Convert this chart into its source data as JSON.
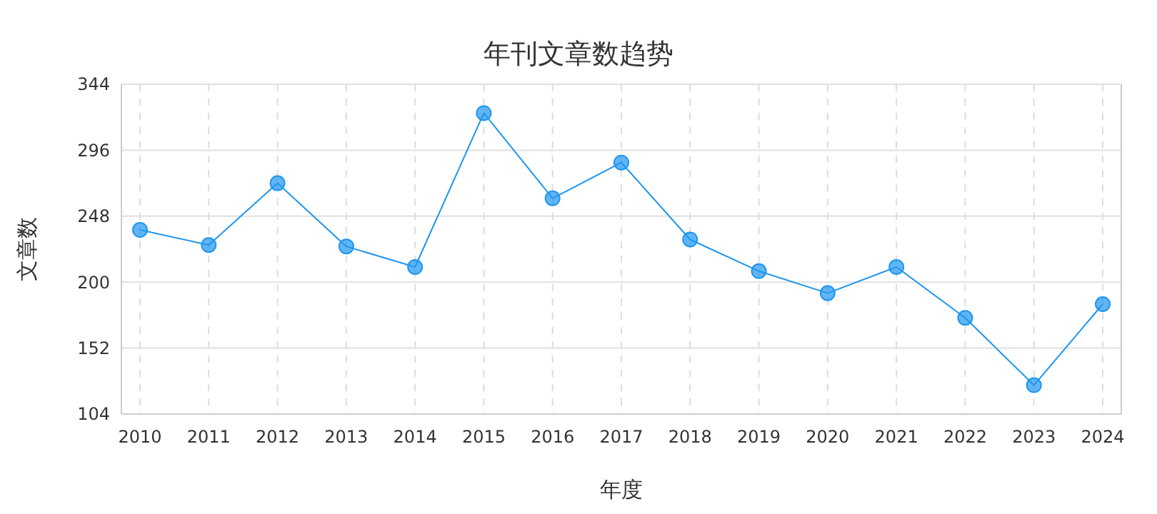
{
  "chart_data": {
    "type": "line",
    "title": "年刊文章数趋势",
    "xlabel": "年度",
    "ylabel": "文章数",
    "categories": [
      "2010",
      "2011",
      "2012",
      "2013",
      "2014",
      "2015",
      "2016",
      "2017",
      "2018",
      "2019",
      "2020",
      "2021",
      "2022",
      "2023",
      "2024"
    ],
    "series": [
      {
        "color": "#1e96f0",
        "values": [
          238,
          227,
          272,
          226,
          211,
          323,
          261,
          287,
          231,
          208,
          192,
          211,
          174,
          125,
          184
        ]
      }
    ],
    "ylim": [
      104,
      344
    ],
    "yticks": [
      104,
      152,
      200,
      248,
      296,
      344
    ],
    "grid": true,
    "marker": "circle",
    "line_style": "solid"
  }
}
